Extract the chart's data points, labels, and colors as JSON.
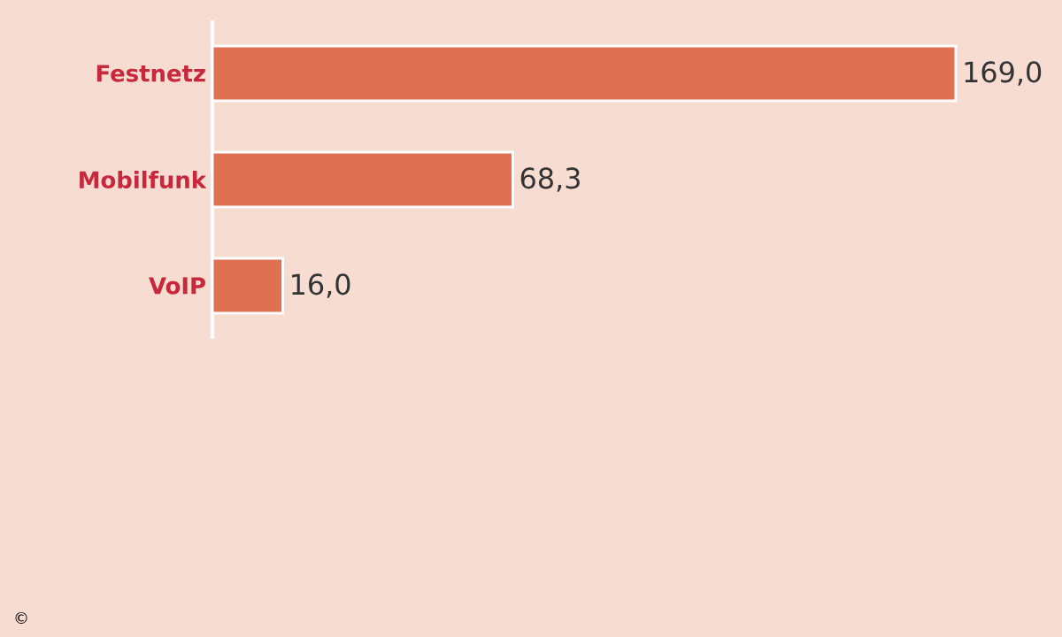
{
  "chart_data": {
    "type": "bar",
    "orientation": "horizontal",
    "categories": [
      "Festnetz",
      "Mobilfunk",
      "VoIP"
    ],
    "values": [
      169.0,
      68.3,
      16.0
    ],
    "value_labels": [
      "169,0",
      "68,3",
      "16,0"
    ],
    "color": "#e07052",
    "xlim": [
      0,
      169
    ],
    "annotations": [
      "©"
    ]
  }
}
